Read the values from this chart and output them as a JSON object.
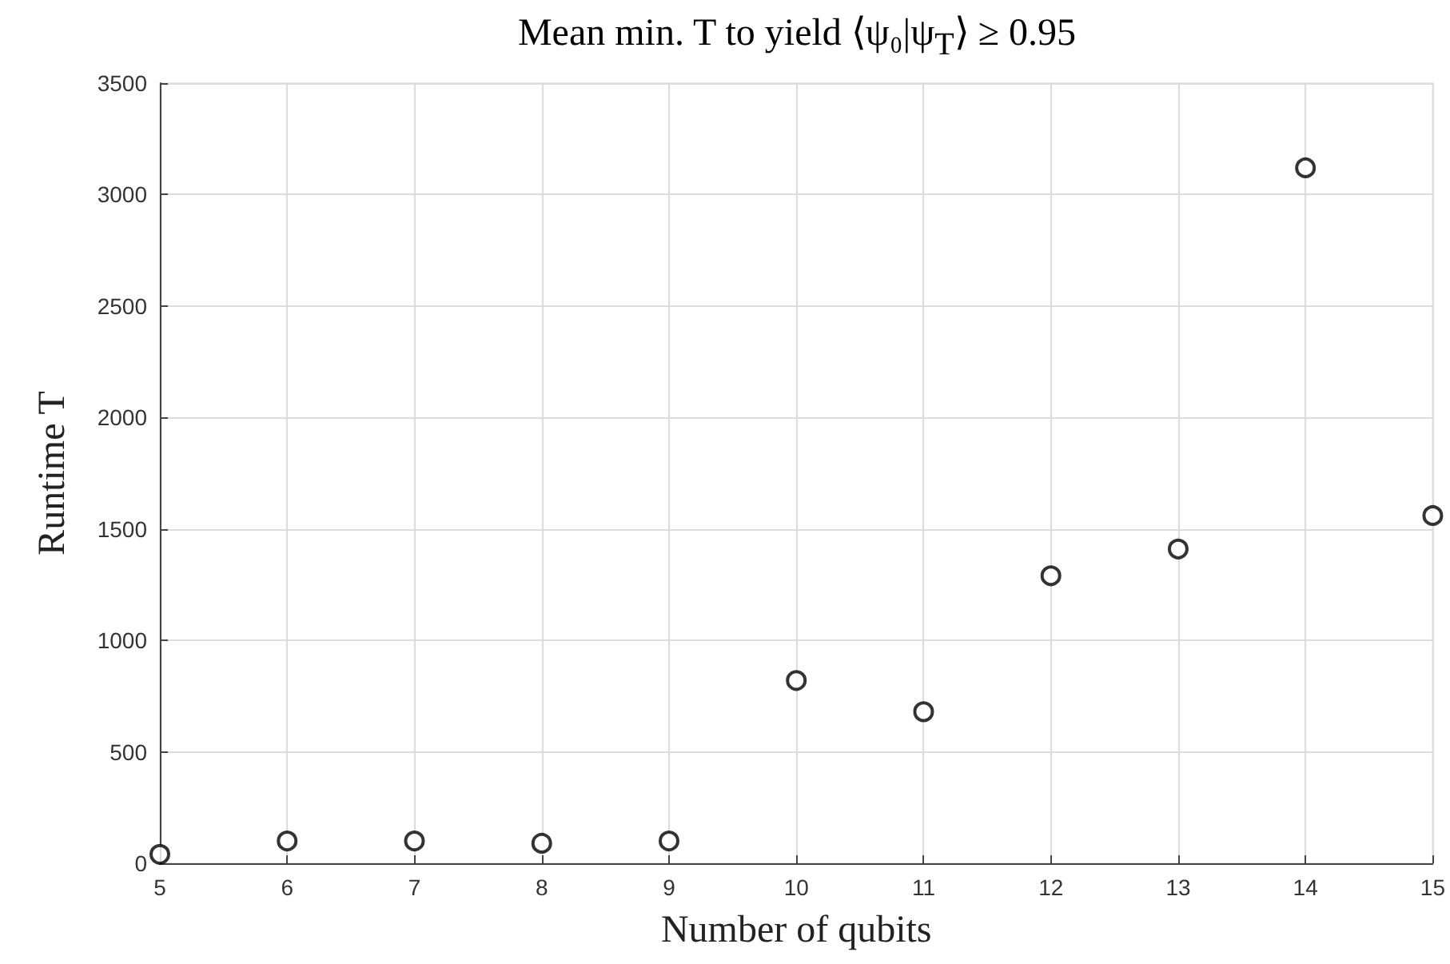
{
  "chart_data": {
    "type": "scatter",
    "title": "Mean min. T to yield ⟨ψ₀|ψ$_{T}$⟩ ≥ 0.95",
    "xlabel": "Number of qubits",
    "ylabel": "Runtime T",
    "x": [
      5,
      6,
      7,
      8,
      9,
      10,
      11,
      12,
      13,
      14,
      15
    ],
    "series": [
      {
        "color": "#000000",
        "values": [
          40,
          100,
          100,
          90,
          100,
          820,
          680,
          1290,
          1410,
          3120,
          1560
        ]
      }
    ],
    "xlim": [
      5,
      15
    ],
    "xticks": [
      5,
      6,
      7,
      8,
      9,
      10,
      11,
      12,
      13,
      14,
      15
    ],
    "ylim": [
      0,
      3500
    ],
    "yticks": [
      0,
      500,
      1000,
      1500,
      2000,
      2500,
      3000,
      3500
    ],
    "grid": true,
    "marker": "circle"
  }
}
